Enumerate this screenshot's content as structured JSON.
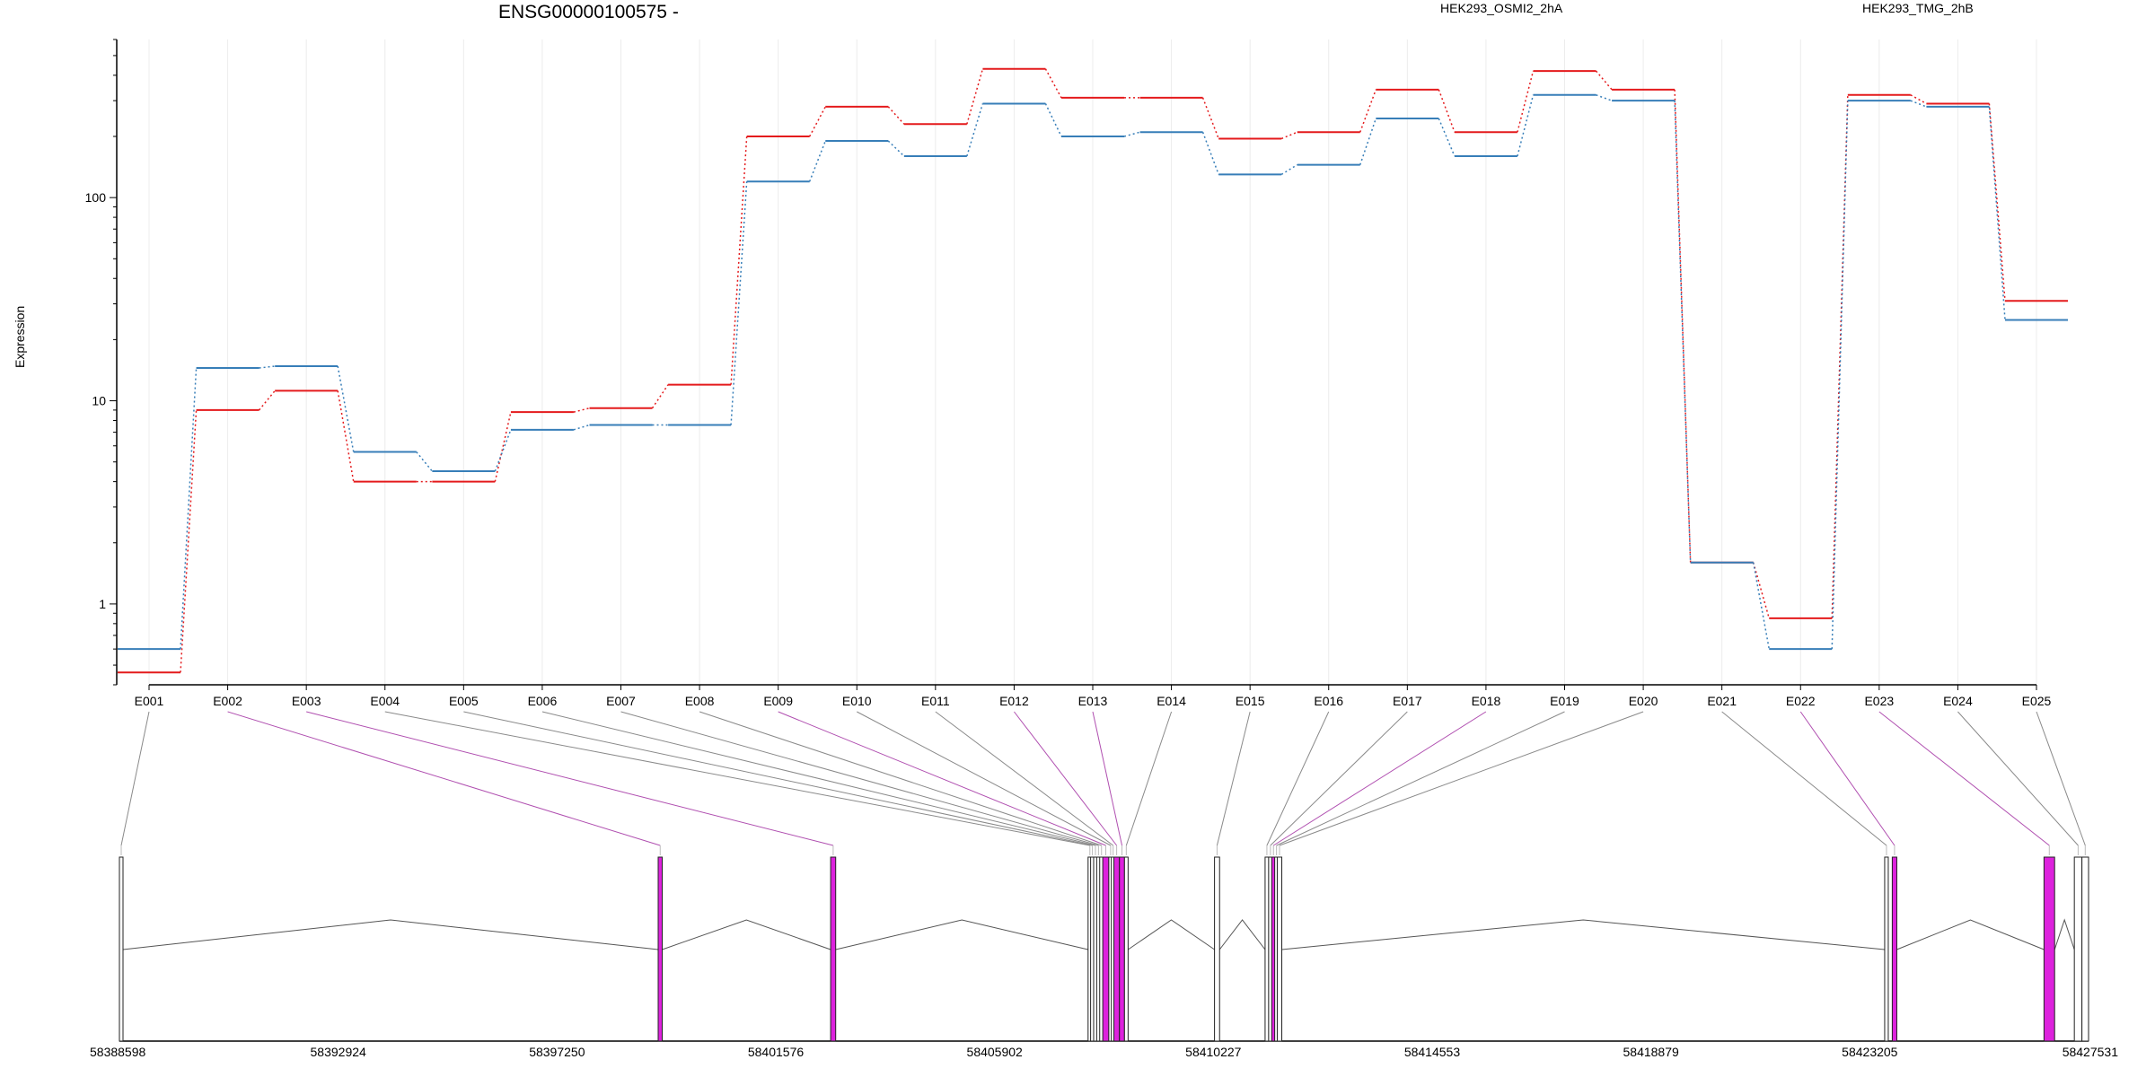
{
  "title": "ENSG00000100575 -",
  "colors": {
    "series_a": "#e41a1c",
    "series_b": "#377eb8",
    "highlight_exon": "#dd22dd",
    "plain_exon": "#ffffff",
    "connector_highlight": "#b04fb0",
    "connector_plain": "#8a8a8a"
  },
  "chart_data": {
    "type": "line",
    "ylabel": "Expression",
    "xlabel": "",
    "yscale": "log",
    "ylim": [
      0.4,
      600
    ],
    "yticks": [
      1,
      10,
      100
    ],
    "ytick_labels": [
      "1",
      "10",
      "100"
    ],
    "grid": "vertical",
    "legend_position": "top",
    "categories": [
      "E001",
      "E002",
      "E003",
      "E004",
      "E005",
      "E006",
      "E007",
      "E008",
      "E009",
      "E010",
      "E011",
      "E012",
      "E013",
      "E014",
      "E015",
      "E016",
      "E017",
      "E018",
      "E019",
      "E020",
      "E021",
      "E022",
      "E023",
      "E024",
      "E025"
    ],
    "series": [
      {
        "name": "HEK293_OSMI2_2hA",
        "color": "#e41a1c",
        "values": [
          0.46,
          9,
          11.2,
          4,
          4,
          8.8,
          9.2,
          12,
          200,
          280,
          230,
          430,
          310,
          310,
          195,
          210,
          340,
          210,
          420,
          340,
          1.6,
          0.85,
          320,
          290,
          31
        ]
      },
      {
        "name": "HEK293_TMG_2hB",
        "color": "#377eb8",
        "values": [
          0.6,
          14.5,
          14.8,
          5.6,
          4.5,
          7.2,
          7.6,
          7.6,
          120,
          190,
          160,
          290,
          200,
          210,
          130,
          145,
          245,
          160,
          320,
          300,
          1.6,
          0.6,
          300,
          280,
          25
        ]
      }
    ],
    "gene_model": {
      "coordinate_range": [
        58388598,
        58427531
      ],
      "coordinate_ticks": [
        58388598,
        58392924,
        58397250,
        58401576,
        58405902,
        58410227,
        58414553,
        58418879,
        58423205,
        58427531
      ],
      "exons": [
        {
          "id": "E001",
          "start": 58388598,
          "end": 58388660,
          "highlight": false
        },
        {
          "id": "E002",
          "start": 58399250,
          "end": 58399330,
          "highlight": true
        },
        {
          "id": "E003",
          "start": 58402660,
          "end": 58402760,
          "highlight": true
        },
        {
          "id": "E004",
          "start": 58407750,
          "end": 58407800,
          "highlight": false
        },
        {
          "id": "E005",
          "start": 58407800,
          "end": 58407860,
          "highlight": false
        },
        {
          "id": "E006",
          "start": 58407860,
          "end": 58407920,
          "highlight": false
        },
        {
          "id": "E007",
          "start": 58407920,
          "end": 58407980,
          "highlight": false
        },
        {
          "id": "E008",
          "start": 58407980,
          "end": 58408040,
          "highlight": false
        },
        {
          "id": "E009",
          "start": 58408040,
          "end": 58408160,
          "highlight": true
        },
        {
          "id": "E010",
          "start": 58408160,
          "end": 58408210,
          "highlight": false
        },
        {
          "id": "E011",
          "start": 58408210,
          "end": 58408260,
          "highlight": false
        },
        {
          "id": "E012",
          "start": 58408260,
          "end": 58408370,
          "highlight": true
        },
        {
          "id": "E013",
          "start": 58408370,
          "end": 58408470,
          "highlight": true
        },
        {
          "id": "E014",
          "start": 58408470,
          "end": 58408530,
          "highlight": false
        },
        {
          "id": "E015",
          "start": 58410250,
          "end": 58410350,
          "highlight": false
        },
        {
          "id": "E016",
          "start": 58411250,
          "end": 58411320,
          "highlight": false
        },
        {
          "id": "E017",
          "start": 58411320,
          "end": 58411380,
          "highlight": false
        },
        {
          "id": "E018",
          "start": 58411380,
          "end": 58411440,
          "highlight": true
        },
        {
          "id": "E019",
          "start": 58411440,
          "end": 58411490,
          "highlight": false
        },
        {
          "id": "E020",
          "start": 58411490,
          "end": 58411580,
          "highlight": false
        },
        {
          "id": "E021",
          "start": 58423500,
          "end": 58423560,
          "highlight": false
        },
        {
          "id": "E022",
          "start": 58423650,
          "end": 58423740,
          "highlight": true
        },
        {
          "id": "E023",
          "start": 58426650,
          "end": 58426860,
          "highlight": true
        },
        {
          "id": "E024",
          "start": 58427250,
          "end": 58427400,
          "highlight": false
        },
        {
          "id": "E025",
          "start": 58427400,
          "end": 58427531,
          "highlight": false
        }
      ]
    }
  }
}
